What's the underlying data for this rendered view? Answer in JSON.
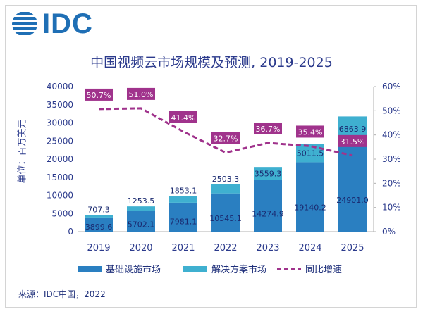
{
  "logo": {
    "text": "IDC"
  },
  "chart_data": {
    "type": "bar",
    "title": "中国视频云市场规模及预测, 2019-2025",
    "ylabel": "单位：百万美元",
    "categories": [
      "2019",
      "2020",
      "2021",
      "2022",
      "2023",
      "2024",
      "2025"
    ],
    "series": [
      {
        "name": "基础设施市场",
        "type": "bar",
        "stack": "main",
        "color": "#2a7fc1",
        "values": [
          3899.6,
          5702.1,
          7981.1,
          10545.1,
          14274.9,
          19140.2,
          24901.0
        ],
        "labels": [
          "3899.6",
          "5702.1",
          "7981.1",
          "10545.1",
          "14274.9",
          "19140.2",
          "24901.0"
        ]
      },
      {
        "name": "解决方案市场",
        "type": "bar",
        "stack": "main",
        "color": "#3fb0d0",
        "values": [
          707.3,
          1253.5,
          1853.1,
          2503.3,
          3559.3,
          5011.5,
          6863.9
        ],
        "labels": [
          "707.3",
          "1253.5",
          "1853.1",
          "2503.3",
          "3559.3",
          "5011.5",
          "6863.9"
        ]
      },
      {
        "name": "同比增速",
        "type": "line",
        "axis": "right",
        "color": "#a0338c",
        "values": [
          50.7,
          51.0,
          41.4,
          32.7,
          36.7,
          35.4,
          31.5
        ],
        "labels": [
          "50.7%",
          "51.0%",
          "41.4%",
          "32.7%",
          "36.7%",
          "35.4%",
          "31.5%"
        ]
      }
    ],
    "ylim": [
      0,
      40000
    ],
    "yticks": [
      "0",
      "5000",
      "10000",
      "15000",
      "20000",
      "25000",
      "30000",
      "35000",
      "40000"
    ],
    "y2lim": [
      0,
      60
    ],
    "y2ticks": [
      "0%",
      "10%",
      "20%",
      "30%",
      "40%",
      "50%",
      "60%"
    ],
    "legend": "bottom",
    "grid": false
  },
  "source": "来源：IDC中国，2022"
}
